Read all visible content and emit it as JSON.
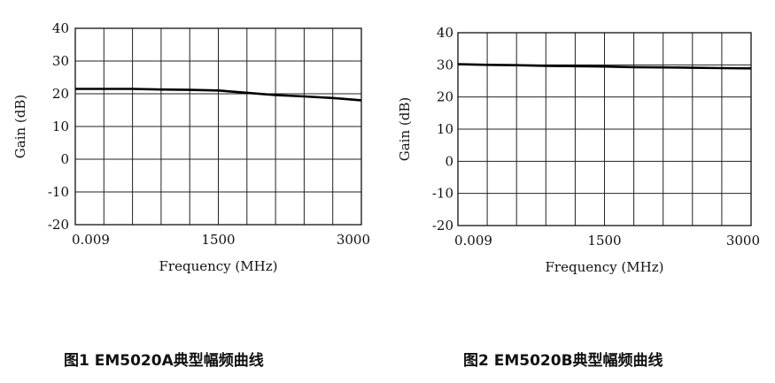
{
  "chart_data": [
    {
      "type": "line",
      "title": "",
      "xlabel": "Frequency (MHz)",
      "ylabel": "Gain (dB)",
      "xlim": [
        0.009,
        3000
      ],
      "ylim": [
        -20,
        40
      ],
      "x_tick_labels": [
        "0.009",
        "1500",
        "3000"
      ],
      "y_ticks": [
        40,
        30,
        20,
        10,
        0,
        -10,
        -20
      ],
      "grid": true,
      "series": [
        {
          "x": [
            0.009,
            300,
            600,
            900,
            1200,
            1500,
            1800,
            2100,
            2400,
            2700,
            3000
          ],
          "values": [
            21.5,
            21.5,
            21.5,
            21.3,
            21.2,
            21.0,
            20.3,
            19.6,
            19.2,
            18.7,
            18.0
          ]
        }
      ],
      "caption": "图1  EM5020A典型幅频曲线"
    },
    {
      "type": "line",
      "title": "",
      "xlabel": "Frequency (MHz)",
      "ylabel": "Gain (dB)",
      "xlim": [
        0.009,
        3000
      ],
      "ylim": [
        -20,
        40
      ],
      "x_tick_labels": [
        "0.009",
        "1500",
        "3000"
      ],
      "y_ticks": [
        40,
        30,
        20,
        10,
        0,
        -10,
        -20
      ],
      "grid": true,
      "series": [
        {
          "x": [
            0.009,
            300,
            600,
            900,
            1200,
            1500,
            1800,
            2100,
            2400,
            2700,
            3000
          ],
          "values": [
            30.2,
            30.0,
            29.9,
            29.7,
            29.6,
            29.5,
            29.3,
            29.2,
            29.1,
            29.0,
            28.9
          ]
        }
      ],
      "caption": "图2 EM5020B典型幅频曲线"
    }
  ]
}
